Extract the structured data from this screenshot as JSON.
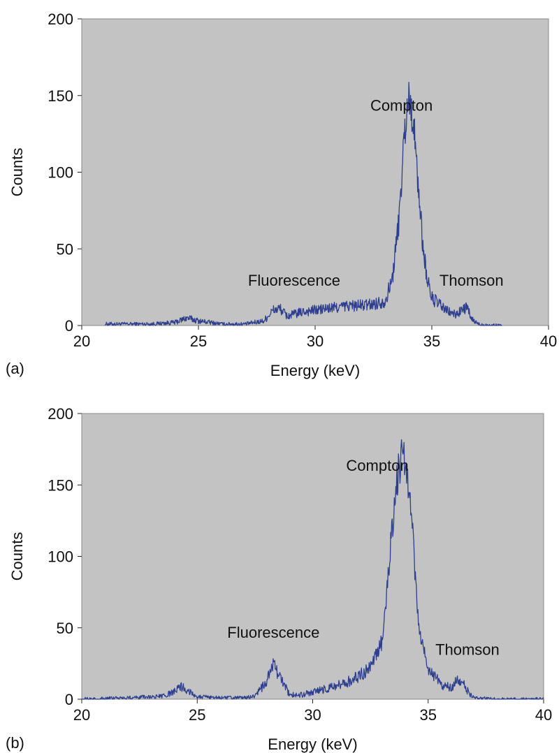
{
  "chart_data": [
    {
      "type": "line",
      "panel_label": "(a)",
      "xlabel": "Energy (keV)",
      "ylabel": "Counts",
      "xlim": [
        20,
        40
      ],
      "ylim": [
        0,
        200
      ],
      "xticks": [
        20,
        25,
        30,
        35,
        40
      ],
      "yticks": [
        0,
        50,
        100,
        150,
        200
      ],
      "x_tick_labels": [
        "20",
        "25",
        "30",
        "35",
        "40"
      ],
      "y_tick_labels": [
        "0",
        "50",
        "100",
        "150",
        "200"
      ],
      "grid": false,
      "background_color": "#c3c3c3",
      "line_color": "#2e3f8f",
      "series": [
        {
          "x": [
            21.0,
            22.0,
            23.0,
            24.0,
            24.5,
            25.0,
            26.0,
            27.0,
            27.8,
            28.2,
            28.5,
            28.8,
            29.0,
            29.5,
            30.0,
            30.5,
            31.0,
            31.5,
            32.0,
            32.5,
            33.0,
            33.3,
            33.6,
            33.8,
            34.0,
            34.2,
            34.4,
            34.6,
            34.8,
            35.0,
            35.3,
            35.6,
            36.0,
            36.3,
            36.5,
            36.7,
            37.0,
            37.5,
            38.0
          ],
          "y": [
            1,
            1,
            1,
            2,
            5,
            3,
            1,
            1,
            3,
            10,
            11,
            6,
            7,
            9,
            10,
            11,
            12,
            13,
            13,
            14,
            16,
            30,
            70,
            120,
            150,
            135,
            95,
            55,
            30,
            18,
            14,
            10,
            7,
            10,
            12,
            4,
            1,
            0,
            0
          ]
        }
      ],
      "annotations": [
        {
          "text": "Compton",
          "x": 33.7,
          "y": 140
        },
        {
          "text": "Fluorescence",
          "x": 29.1,
          "y": 26
        },
        {
          "text": "Thomson",
          "x": 36.7,
          "y": 26
        }
      ]
    },
    {
      "type": "line",
      "panel_label": "(b)",
      "xlabel": "Energy (keV)",
      "ylabel": "Counts",
      "xlim": [
        20,
        40
      ],
      "ylim": [
        0,
        200
      ],
      "xticks": [
        20,
        25,
        30,
        35,
        40
      ],
      "yticks": [
        0,
        50,
        100,
        150,
        200
      ],
      "x_tick_labels": [
        "20",
        "25",
        "30",
        "35",
        "40"
      ],
      "y_tick_labels": [
        "0",
        "50",
        "100",
        "150",
        "200"
      ],
      "grid": false,
      "background_color": "#c3c3c3",
      "line_color": "#2e3f8f",
      "series": [
        {
          "x": [
            20.0,
            22.0,
            23.5,
            24.0,
            24.3,
            24.6,
            25.0,
            26.0,
            27.0,
            27.5,
            28.0,
            28.3,
            28.6,
            29.0,
            29.5,
            30.0,
            30.5,
            31.0,
            31.5,
            32.0,
            32.5,
            33.0,
            33.3,
            33.6,
            33.9,
            34.1,
            34.3,
            34.5,
            34.7,
            35.0,
            35.3,
            35.6,
            36.0,
            36.3,
            36.5,
            36.8,
            37.0,
            38.0,
            40.0
          ],
          "y": [
            0,
            1,
            2,
            5,
            9,
            6,
            2,
            1,
            1,
            2,
            12,
            24,
            15,
            3,
            3,
            5,
            7,
            9,
            12,
            16,
            22,
            40,
            90,
            150,
            175,
            160,
            120,
            70,
            40,
            22,
            15,
            10,
            8,
            14,
            12,
            3,
            1,
            0,
            0
          ]
        }
      ],
      "annotations": [
        {
          "text": "Compton",
          "x": 32.8,
          "y": 160
        },
        {
          "text": "Fluorescence",
          "x": 28.3,
          "y": 43
        },
        {
          "text": "Thomson",
          "x": 36.7,
          "y": 31
        }
      ]
    }
  ]
}
